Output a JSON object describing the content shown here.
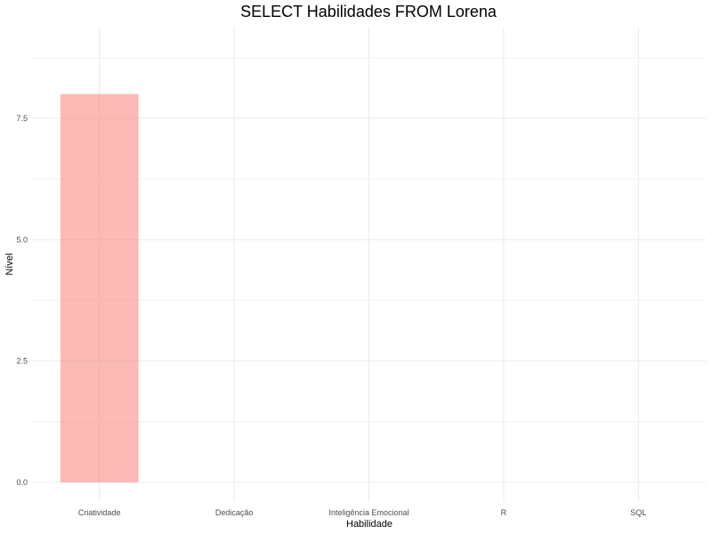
{
  "chart_data": {
    "type": "bar",
    "title": "SELECT Habilidades FROM Lorena",
    "xlabel": "Habilidade",
    "ylabel": "Nível",
    "categories": [
      "Criatividade",
      "Dedicação",
      "Inteligência Emocional",
      "R",
      "SQL"
    ],
    "values": [
      8,
      0,
      0,
      0,
      0
    ],
    "ylim": [
      0,
      9.1
    ],
    "yticks": [
      "0.0",
      "2.5",
      "5.0",
      "7.5"
    ],
    "ytick_values": [
      0,
      2.5,
      5,
      7.5
    ],
    "grid": true,
    "legend": "none",
    "bar_color": "#f8766d"
  }
}
